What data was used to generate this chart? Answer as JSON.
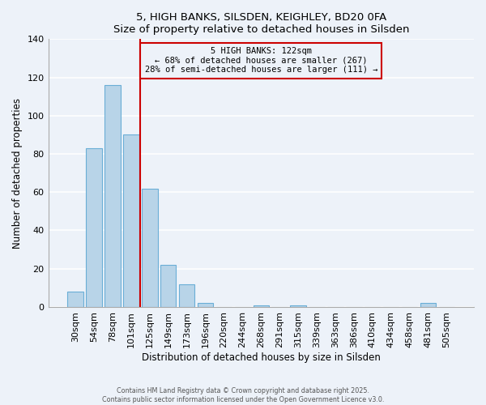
{
  "title": "5, HIGH BANKS, SILSDEN, KEIGHLEY, BD20 0FA",
  "subtitle": "Size of property relative to detached houses in Silsden",
  "xlabel": "Distribution of detached houses by size in Silsden",
  "ylabel": "Number of detached properties",
  "footer1": "Contains HM Land Registry data © Crown copyright and database right 2025.",
  "footer2": "Contains public sector information licensed under the Open Government Licence v3.0.",
  "bar_labels": [
    "30sqm",
    "54sqm",
    "78sqm",
    "101sqm",
    "125sqm",
    "149sqm",
    "173sqm",
    "196sqm",
    "220sqm",
    "244sqm",
    "268sqm",
    "291sqm",
    "315sqm",
    "339sqm",
    "363sqm",
    "386sqm",
    "410sqm",
    "434sqm",
    "458sqm",
    "481sqm",
    "505sqm"
  ],
  "bar_values": [
    8,
    83,
    116,
    90,
    62,
    22,
    12,
    2,
    0,
    0,
    1,
    0,
    1,
    0,
    0,
    0,
    0,
    0,
    0,
    2,
    0
  ],
  "bar_color": "#b8d4e8",
  "bar_edge_color": "#6aaed6",
  "ylim": [
    0,
    140
  ],
  "yticks": [
    0,
    20,
    40,
    60,
    80,
    100,
    120,
    140
  ],
  "vline_index": 3.5,
  "vline_color": "#cc0000",
  "annotation_text": "5 HIGH BANKS: 122sqm\n← 68% of detached houses are smaller (267)\n28% of semi-detached houses are larger (111) →",
  "annotation_box_edge": "#cc0000",
  "background_color": "#edf2f9",
  "grid_color": "#ffffff",
  "spine_color": "#aaaaaa"
}
